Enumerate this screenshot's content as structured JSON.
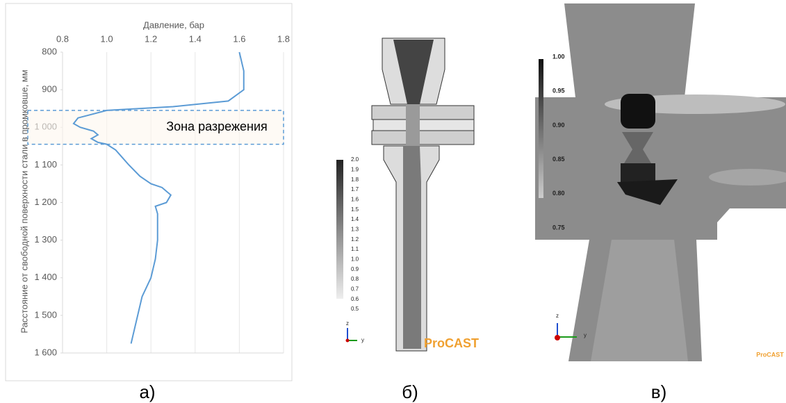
{
  "chart_data": {
    "type": "line",
    "x_label": "Давление, бар",
    "y_label": "Расстояние от свободной поверхности стали в промковше, мм",
    "annotation": "Зона разрежения",
    "zone": [
      955,
      1045
    ],
    "x": [
      1.6,
      1.62,
      1.62,
      1.55,
      1.3,
      1.0,
      0.87,
      0.85,
      0.88,
      0.94,
      0.96,
      0.93,
      0.96,
      1.0,
      1.04,
      1.07,
      1.1,
      1.15,
      1.2,
      1.25,
      1.29,
      1.27,
      1.22,
      1.23,
      1.23,
      1.22,
      1.2,
      1.16,
      1.14,
      1.12,
      1.11
    ],
    "values": [
      800,
      850,
      900,
      930,
      945,
      955,
      975,
      990,
      1000,
      1010,
      1020,
      1030,
      1040,
      1045,
      1060,
      1080,
      1100,
      1130,
      1150,
      1160,
      1180,
      1200,
      1210,
      1230,
      1300,
      1350,
      1400,
      1450,
      1500,
      1550,
      1575
    ],
    "color": "#5b9bd5",
    "xlim": [
      0.8,
      1.8
    ],
    "xticks": [
      0.8,
      {
        "value": 1,
        "label": "1.0"
      },
      1.2,
      1.4,
      1.6,
      1.8
    ],
    "ylim": [
      800,
      1600
    ],
    "yticks": [
      800,
      900,
      {
        "value": 1000,
        "label": "1 000"
      },
      {
        "value": 1100,
        "label": "1 100"
      },
      {
        "value": 1200,
        "label": "1 200"
      },
      {
        "value": 1300,
        "label": "1 300"
      },
      {
        "value": 1400,
        "label": "1 400"
      },
      {
        "value": 1500,
        "label": "1 500"
      },
      {
        "value": 1600,
        "label": "1 600"
      }
    ],
    "grid": true
  },
  "panel_labels": [
    "а)",
    "б)",
    "в)"
  ],
  "panel_b": {
    "scale": [
      "2.0",
      "1.9",
      "1.8",
      "1.7",
      "1.6",
      "1.5",
      "1.4",
      "1.3",
      "1.2",
      "1.1",
      "1.0",
      "0.9",
      "0.8",
      "0.7",
      "0.6",
      "0.5"
    ],
    "axis_labels": [
      "z",
      "y"
    ],
    "brand": "ProCAST"
  },
  "panel_c": {
    "scale": [
      "1.00",
      "0.95",
      "0.90",
      "0.85",
      "0.80",
      "0.75"
    ],
    "axis_labels": [
      "z",
      "y"
    ],
    "brand": "ProCAST"
  }
}
